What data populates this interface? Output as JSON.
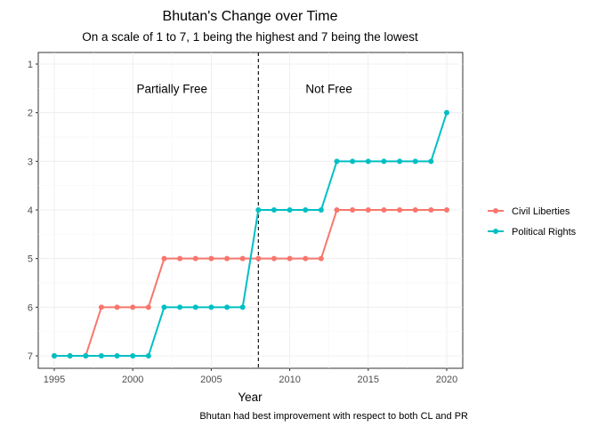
{
  "chart_data": {
    "type": "line",
    "title": "Bhutan's Change over Time",
    "subtitle": "On a scale of 1 to 7, 1 being the highest and 7 being the lowest",
    "caption": "Bhutan had best improvement with respect to both CL and PR",
    "xlabel": "Year",
    "ylabel": "",
    "xlim": [
      1995,
      2020
    ],
    "ylim": [
      1,
      7
    ],
    "y_reversed": true,
    "x_ticks": [
      1995,
      2000,
      2005,
      2010,
      2015,
      2020
    ],
    "y_ticks": [
      1,
      2,
      3,
      4,
      5,
      6,
      7
    ],
    "grid": true,
    "legend_position": "right",
    "x": [
      1995,
      1996,
      1997,
      1998,
      1999,
      2000,
      2001,
      2002,
      2003,
      2004,
      2005,
      2006,
      2007,
      2008,
      2009,
      2010,
      2011,
      2012,
      2013,
      2014,
      2015,
      2016,
      2017,
      2018,
      2019,
      2020
    ],
    "series": [
      {
        "name": "Civil Liberties",
        "color": "#F8766D",
        "values": [
          7,
          7,
          7,
          6,
          6,
          6,
          6,
          5,
          5,
          5,
          5,
          5,
          5,
          5,
          5,
          5,
          5,
          5,
          4,
          4,
          4,
          4,
          4,
          4,
          4,
          4
        ]
      },
      {
        "name": "Political Rights",
        "color": "#00BFC4",
        "values": [
          7,
          7,
          7,
          7,
          7,
          7,
          7,
          6,
          6,
          6,
          6,
          6,
          6,
          4,
          4,
          4,
          4,
          4,
          3,
          3,
          3,
          3,
          3,
          3,
          3,
          2
        ]
      }
    ],
    "vline": {
      "x": 2008,
      "style": "dashed"
    },
    "annotations": [
      {
        "text": "Partially Free",
        "x": 2002.5,
        "y": 1.5
      },
      {
        "text": "Not Free",
        "x": 2012.5,
        "y": 1.5
      }
    ]
  }
}
